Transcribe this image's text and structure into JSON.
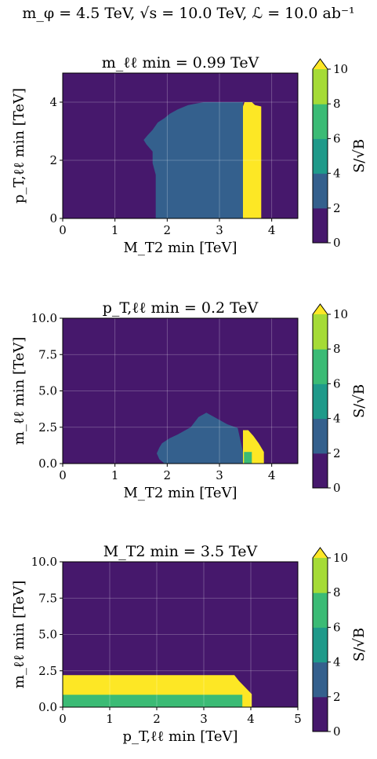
{
  "suptitle": "m_φ = 4.5 TeV, √s = 10.0 TeV, ℒ = 10.0 ab⁻¹",
  "chart_data": [
    {
      "type": "heatmap",
      "title": "m_ℓℓ min = 0.99 TeV",
      "xlabel": "M_T2 min [TeV]",
      "ylabel": "p_T,ℓℓ min [TeV]",
      "xlim": [
        0,
        4.5
      ],
      "ylim": [
        0,
        5
      ],
      "xticks": [
        "0",
        "1",
        "2",
        "3",
        "4"
      ],
      "yticks": [
        "0",
        "2",
        "4"
      ],
      "grid": true,
      "colorbar": {
        "label": "S/√B",
        "levels": [
          0,
          2,
          4,
          6,
          8,
          10
        ],
        "ticks": [
          "0",
          "2",
          "4",
          "6",
          "8",
          "10"
        ],
        "extend": "max",
        "colors": [
          "#46186c",
          "#34608d",
          "#1f9a8a",
          "#3bbb75",
          "#a5db36",
          "#fde725"
        ]
      },
      "regions": [
        {
          "level": "2-4",
          "color": "#34608d",
          "polygon": [
            [
              1.78,
              0
            ],
            [
              1.78,
              1.5
            ],
            [
              1.72,
              1.9
            ],
            [
              1.72,
              2.3
            ],
            [
              1.6,
              2.55
            ],
            [
              1.55,
              2.7
            ],
            [
              1.62,
              2.85
            ],
            [
              1.72,
              3.05
            ],
            [
              1.82,
              3.3
            ],
            [
              1.95,
              3.45
            ],
            [
              2.05,
              3.6
            ],
            [
              2.2,
              3.75
            ],
            [
              2.4,
              3.9
            ],
            [
              2.7,
              4.0
            ],
            [
              3.45,
              4.0
            ],
            [
              3.45,
              0
            ]
          ]
        },
        {
          "level": ">10",
          "color": "#fde725",
          "polygon": [
            [
              3.45,
              0
            ],
            [
              3.45,
              3.85
            ],
            [
              3.48,
              4.0
            ],
            [
              3.62,
              4.0
            ],
            [
              3.68,
              3.9
            ],
            [
              3.8,
              3.85
            ],
            [
              3.8,
              0
            ]
          ]
        }
      ]
    },
    {
      "type": "heatmap",
      "title": "p_T,ℓℓ min = 0.2 TeV",
      "xlabel": "M_T2 min [TeV]",
      "ylabel": "m_ℓℓ min [TeV]",
      "xlim": [
        0,
        4.5
      ],
      "ylim": [
        0,
        10
      ],
      "xticks": [
        "0",
        "1",
        "2",
        "3",
        "4"
      ],
      "yticks": [
        "0.0",
        "2.5",
        "5.0",
        "7.5",
        "10.0"
      ],
      "grid": true,
      "colorbar": {
        "label": "S/√B",
        "levels": [
          0,
          2,
          4,
          6,
          8,
          10
        ],
        "ticks": [
          "0",
          "2",
          "4",
          "6",
          "8",
          "10"
        ],
        "extend": "max",
        "colors": [
          "#46186c",
          "#34608d",
          "#1f9a8a",
          "#3bbb75",
          "#a5db36",
          "#fde725"
        ]
      },
      "regions": [
        {
          "level": "2-4",
          "color": "#34608d",
          "polygon": [
            [
              1.95,
              0
            ],
            [
              1.85,
              0.3
            ],
            [
              1.8,
              0.7
            ],
            [
              1.85,
              1.1
            ],
            [
              1.9,
              1.4
            ],
            [
              2.05,
              1.75
            ],
            [
              2.2,
              2.0
            ],
            [
              2.45,
              2.5
            ],
            [
              2.6,
              3.2
            ],
            [
              2.75,
              3.5
            ],
            [
              2.9,
              3.2
            ],
            [
              3.15,
              2.7
            ],
            [
              3.35,
              2.45
            ],
            [
              3.45,
              0.8
            ],
            [
              3.45,
              0
            ]
          ]
        },
        {
          "level": ">10",
          "color": "#fde725",
          "polygon": [
            [
              3.45,
              0
            ],
            [
              3.45,
              2.3
            ],
            [
              3.55,
              2.3
            ],
            [
              3.65,
              1.9
            ],
            [
              3.75,
              1.4
            ],
            [
              3.85,
              0.8
            ],
            [
              3.85,
              0
            ]
          ]
        },
        {
          "level": "6-8",
          "color": "#3bbb75",
          "polygon": [
            [
              3.47,
              0
            ],
            [
              3.47,
              0.8
            ],
            [
              3.62,
              0.8
            ],
            [
              3.62,
              0
            ]
          ]
        }
      ]
    },
    {
      "type": "heatmap",
      "title": "M_T2 min = 3.5 TeV",
      "xlabel": "p_T,ℓℓ min [TeV]",
      "ylabel": "m_ℓℓ min [TeV]",
      "xlim": [
        0,
        5
      ],
      "ylim": [
        0,
        10
      ],
      "xticks": [
        "0",
        "1",
        "2",
        "3",
        "4",
        "5"
      ],
      "yticks": [
        "0.0",
        "2.5",
        "5.0",
        "7.5",
        "10.0"
      ],
      "grid": true,
      "colorbar": {
        "label": "S/√B",
        "levels": [
          0,
          2,
          4,
          6,
          8,
          10
        ],
        "ticks": [
          "0",
          "2",
          "4",
          "6",
          "8",
          "10"
        ],
        "extend": "max",
        "colors": [
          "#46186c",
          "#34608d",
          "#1f9a8a",
          "#3bbb75",
          "#a5db36",
          "#fde725"
        ]
      },
      "regions": [
        {
          "level": ">10",
          "color": "#fde725",
          "polygon": [
            [
              0,
              0
            ],
            [
              0,
              2.2
            ],
            [
              3.65,
              2.2
            ],
            [
              3.75,
              1.8
            ],
            [
              3.9,
              1.3
            ],
            [
              4.02,
              0.9
            ],
            [
              4.02,
              0
            ]
          ]
        },
        {
          "level": "6-8",
          "color": "#3bbb75",
          "polygon": [
            [
              0,
              0
            ],
            [
              0,
              0.85
            ],
            [
              3.82,
              0.85
            ],
            [
              3.82,
              0
            ]
          ]
        }
      ]
    }
  ]
}
